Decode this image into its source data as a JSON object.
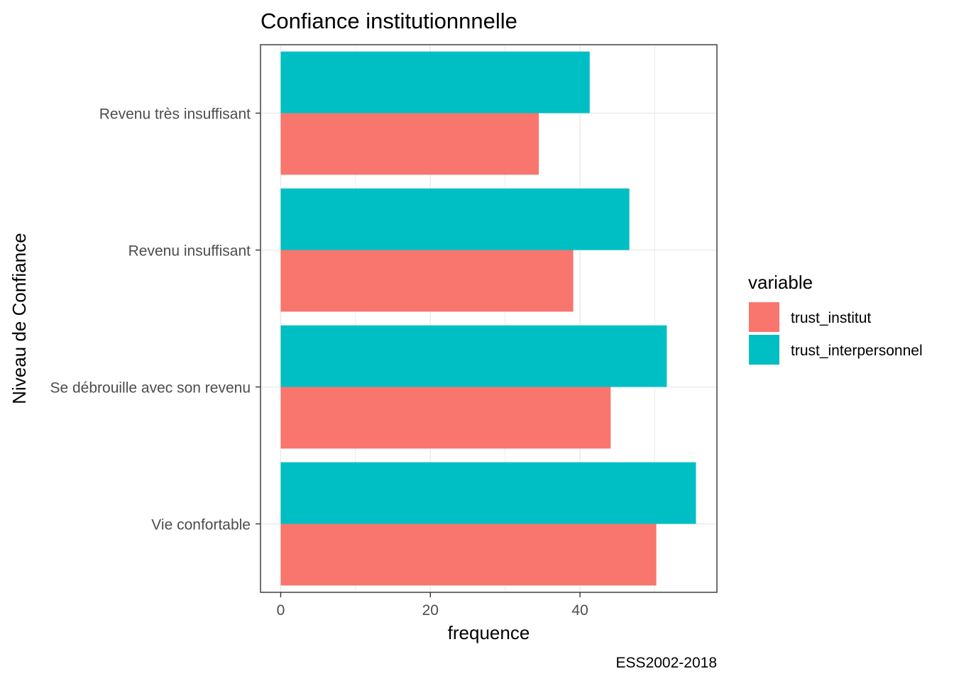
{
  "chart_data": {
    "type": "bar",
    "orientation": "horizontal",
    "title": "Confiance institutionnnelle",
    "xlabel": "frequence",
    "ylabel": "Niveau de Confiance",
    "caption": "ESS2002-2018",
    "categories": [
      "Revenu très insuffisant",
      "Revenu insuffisant",
      "Se débrouille avec son revenu",
      "Vie confortable"
    ],
    "series": [
      {
        "name": "trust_institut",
        "color": "#F8766D",
        "values": [
          34.5,
          39.1,
          44.1,
          50.2
        ]
      },
      {
        "name": "trust_interpersonnel",
        "color": "#00BFC4",
        "values": [
          41.3,
          46.6,
          51.6,
          55.5
        ]
      }
    ],
    "xlim": [
      -2.7,
      58.3
    ],
    "xticks": [
      0,
      20,
      40
    ],
    "grid": true,
    "legend": {
      "title": "variable",
      "position": "right"
    }
  }
}
